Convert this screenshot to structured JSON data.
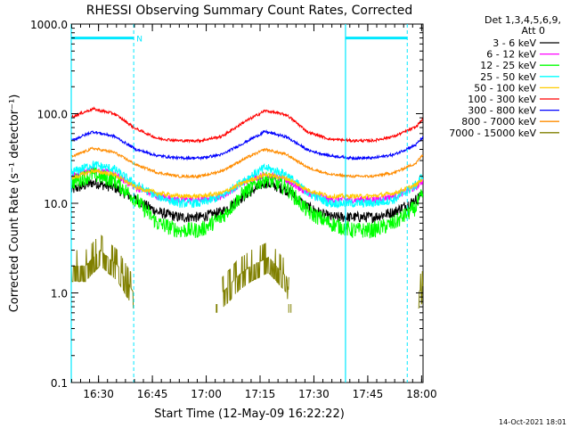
{
  "chart_data": {
    "type": "line",
    "title": "RHESSI Observing Summary Count Rates, Corrected",
    "xlabel": "Start Time (12-May-09 16:22:22)",
    "ylabel": "Corrected Count Rate (s⁻¹ detector⁻¹)",
    "yscale": "log",
    "ylim": [
      0.1,
      1000
    ],
    "xlim_minutes": [
      0,
      98
    ],
    "y_ticks": [
      {
        "v": 1000,
        "label": "1000.0"
      },
      {
        "v": 100,
        "label": "100.0"
      },
      {
        "v": 10,
        "label": "10.0"
      },
      {
        "v": 1,
        "label": "1.0"
      },
      {
        "v": 0.1,
        "label": "0.1"
      }
    ],
    "x_ticks": [
      {
        "m": 7.6,
        "label": "16:30"
      },
      {
        "m": 22.6,
        "label": "16:45"
      },
      {
        "m": 37.6,
        "label": "17:00"
      },
      {
        "m": 52.6,
        "label": "17:15"
      },
      {
        "m": 67.6,
        "label": "17:30"
      },
      {
        "m": 82.6,
        "label": "17:45"
      },
      {
        "m": 97.6,
        "label": "18:00"
      }
    ],
    "legend": {
      "placement": "right",
      "header": [
        "Det 1,3,4,5,6,9,",
        "Att 0"
      ]
    },
    "series": [
      {
        "name": "3 - 6 keV",
        "color": "#000000",
        "x": [
          0,
          6,
          12,
          18,
          24,
          30,
          36,
          42,
          48,
          54,
          60,
          66,
          72,
          78,
          84,
          90,
          96,
          98
        ],
        "values": [
          14,
          17,
          15,
          11,
          8,
          7,
          7,
          8,
          12,
          17,
          14,
          9,
          7,
          7,
          7,
          8,
          11,
          13
        ],
        "noise": 0.12
      },
      {
        "name": "6 - 12 keV",
        "color": "#ff00ff",
        "x": [
          0,
          6,
          12,
          18,
          24,
          30,
          36,
          42,
          48,
          54,
          60,
          66,
          72,
          78,
          84,
          90,
          96,
          98
        ],
        "values": [
          20,
          24,
          21,
          15,
          12,
          11,
          11,
          12,
          17,
          21,
          18,
          13,
          11,
          11,
          11,
          12,
          15,
          18
        ],
        "noise": 0.08
      },
      {
        "name": "12 - 25 keV",
        "color": "#00ff00",
        "x": [
          0,
          6,
          12,
          18,
          24,
          30,
          36,
          42,
          48,
          54,
          60,
          66,
          72,
          78,
          84,
          90,
          96,
          98
        ],
        "values": [
          17,
          21,
          18,
          11,
          6,
          5,
          5,
          7,
          13,
          19,
          15,
          8,
          6,
          5,
          5,
          6,
          9,
          13
        ],
        "noise": 0.18
      },
      {
        "name": "25 - 50 keV",
        "color": "#00ffff",
        "x": [
          0,
          6,
          12,
          18,
          24,
          30,
          36,
          42,
          48,
          54,
          60,
          66,
          72,
          78,
          84,
          90,
          96,
          98
        ],
        "values": [
          22,
          27,
          24,
          16,
          12,
          10,
          10,
          12,
          18,
          25,
          21,
          13,
          10,
          10,
          10,
          11,
          16,
          21
        ],
        "noise": 0.1
      },
      {
        "name": "50 - 100 keV",
        "color": "#ffcc00",
        "x": [
          0,
          6,
          12,
          18,
          24,
          30,
          36,
          42,
          48,
          54,
          60,
          66,
          72,
          78,
          84,
          90,
          96,
          98
        ],
        "values": [
          19,
          23,
          21,
          15,
          13,
          12,
          12,
          13,
          17,
          21,
          19,
          14,
          12,
          12,
          12,
          13,
          16,
          19
        ],
        "noise": 0.05
      },
      {
        "name": "100 - 300 keV",
        "color": "#ff0000",
        "x": [
          0,
          6,
          12,
          18,
          24,
          30,
          36,
          42,
          48,
          54,
          60,
          66,
          72,
          78,
          84,
          90,
          96,
          98
        ],
        "values": [
          92,
          113,
          100,
          68,
          53,
          50,
          50,
          56,
          80,
          108,
          97,
          62,
          52,
          50,
          50,
          56,
          71,
          88
        ],
        "noise": 0.03
      },
      {
        "name": "300 - 800 keV",
        "color": "#0000ff",
        "x": [
          0,
          6,
          12,
          18,
          24,
          30,
          36,
          42,
          48,
          54,
          60,
          66,
          72,
          78,
          84,
          90,
          96,
          98
        ],
        "values": [
          50,
          63,
          56,
          40,
          34,
          32,
          32,
          35,
          47,
          63,
          55,
          39,
          34,
          32,
          32,
          35,
          45,
          55
        ],
        "noise": 0.03
      },
      {
        "name": "800 - 7000 keV",
        "color": "#ff8c00",
        "x": [
          0,
          6,
          12,
          18,
          24,
          30,
          36,
          42,
          48,
          54,
          60,
          66,
          72,
          78,
          84,
          90,
          96,
          98
        ],
        "values": [
          33,
          41,
          37,
          27,
          22,
          20,
          20,
          23,
          31,
          40,
          35,
          25,
          21,
          20,
          20,
          22,
          28,
          35
        ],
        "noise": 0.03
      },
      {
        "name": "7000 - 15000 keV",
        "color": "#808000",
        "x": [
          0,
          4,
          8,
          13,
          17.4,
          42,
          44,
          46,
          50,
          55,
          60,
          60.6,
          96.7,
          98
        ],
        "values": [
          2,
          2,
          3,
          2,
          1,
          1,
          1.2,
          1.5,
          2,
          2.5,
          1.5,
          1,
          1,
          1.2
        ],
        "noise": 0.15,
        "gaps": [
          [
            17.4,
            42
          ],
          [
            60.6,
            96.7
          ]
        ]
      }
    ],
    "extra_segments": {
      "color": "#808000",
      "segments": [
        {
          "x": [
            40.4,
            40.6
          ],
          "values": [
            0.6,
            0.75
          ]
        },
        {
          "x": [
            60.6,
            61.2
          ],
          "values": [
            0.6,
            0.75
          ]
        }
      ]
    },
    "overlays": {
      "color": "#00e8ff",
      "night_bars": [
        {
          "x": [
            0,
            17.4
          ]
        },
        {
          "x": [
            76.4,
            93.6
          ]
        }
      ],
      "night_bar_level": 700,
      "saa_label": {
        "text": "N",
        "x": 19.0
      },
      "solid_lines": [
        0,
        76.4
      ],
      "dashed_lines": [
        17.4,
        93.6
      ]
    },
    "grid": false
  },
  "footer_date": "14-Oct-2021 18:01"
}
